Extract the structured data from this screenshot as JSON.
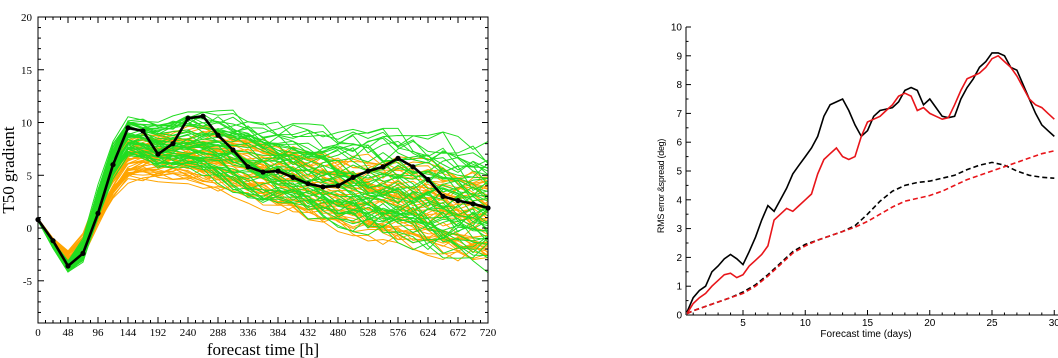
{
  "chart_data": [
    {
      "type": "line",
      "title": "",
      "xlabel": "forecast time [h]",
      "ylabel": "T50 gradient",
      "xlim": [
        0,
        720
      ],
      "ylim": [
        -9,
        20
      ],
      "x_ticks": [
        "0",
        "48",
        "96",
        "144",
        "192",
        "240",
        "288",
        "336",
        "384",
        "432",
        "480",
        "528",
        "576",
        "624",
        "672",
        "720"
      ],
      "y_ticks": [
        "-5",
        "0",
        "5",
        "10",
        "15",
        "20"
      ],
      "x_tick_values": [
        0,
        48,
        96,
        144,
        192,
        240,
        288,
        336,
        384,
        432,
        480,
        528,
        576,
        624,
        672,
        720
      ],
      "y_tick_values": [
        -5,
        0,
        5,
        10,
        15,
        20
      ],
      "colors": {
        "orange": "#ffa500",
        "green": "#22dd22",
        "black": "#000000"
      },
      "orange_envelope": {
        "x": [
          0,
          24,
          48,
          72,
          96,
          120,
          144,
          168,
          192,
          216,
          240,
          264,
          288,
          312,
          336,
          360,
          384,
          408,
          432,
          456,
          480,
          504,
          528,
          552,
          576,
          600,
          624,
          648,
          672,
          696,
          720
        ],
        "center": [
          0.8,
          -1.3,
          -2.9,
          -1.8,
          1.7,
          4.5,
          6.4,
          6.8,
          6.9,
          7.0,
          7.1,
          6.9,
          6.7,
          6.3,
          5.9,
          5.5,
          5.1,
          4.7,
          4.3,
          3.9,
          3.5,
          3.2,
          2.9,
          2.6,
          2.4,
          2.2,
          2.0,
          1.8,
          1.6,
          1.4,
          1.2
        ],
        "spread": [
          0.1,
          0.3,
          0.6,
          0.9,
          1.1,
          1.3,
          1.5,
          1.7,
          1.8,
          1.9,
          2.0,
          2.1,
          2.2,
          2.3,
          2.4,
          2.5,
          2.6,
          2.6,
          2.7,
          2.8,
          2.8,
          2.9,
          3.0,
          3.0,
          3.1,
          3.1,
          3.2,
          3.3,
          3.3,
          3.4,
          3.4
        ],
        "members": 50
      },
      "green_envelope": {
        "x": [
          0,
          24,
          48,
          72,
          96,
          120,
          144,
          168,
          192,
          216,
          240,
          264,
          288,
          312,
          336,
          360,
          384,
          408,
          432,
          456,
          480,
          504,
          528,
          552,
          576,
          600,
          624,
          648,
          672,
          696,
          720
        ],
        "center": [
          0.8,
          -1.6,
          -3.6,
          -2.1,
          2.4,
          6.3,
          8.6,
          8.4,
          7.9,
          8.0,
          8.1,
          8.0,
          7.6,
          7.1,
          6.7,
          6.3,
          5.9,
          5.6,
          5.2,
          4.9,
          4.6,
          4.4,
          4.2,
          4.0,
          3.8,
          3.6,
          3.3,
          3.0,
          2.7,
          2.4,
          2.1
        ],
        "spread": [
          0.1,
          0.3,
          0.5,
          0.9,
          1.2,
          1.4,
          1.5,
          1.6,
          1.8,
          2.0,
          2.2,
          2.4,
          2.6,
          2.8,
          3.0,
          3.1,
          3.2,
          3.3,
          3.4,
          3.5,
          3.6,
          3.7,
          3.8,
          3.9,
          4.0,
          4.1,
          4.2,
          4.3,
          4.3,
          4.4,
          4.4
        ],
        "members": 50
      },
      "series": [
        {
          "x": [
            0,
            24,
            48,
            72,
            96,
            120,
            144,
            168,
            192,
            216,
            240,
            264,
            288,
            312,
            336,
            360,
            384,
            408,
            432,
            456,
            480,
            504,
            528,
            552,
            576,
            600,
            624,
            648,
            672,
            696,
            720
          ],
          "values": [
            0.8,
            -1.2,
            -3.6,
            -2.4,
            1.4,
            6.0,
            9.5,
            9.2,
            7.0,
            8.0,
            10.4,
            10.6,
            8.8,
            7.4,
            5.8,
            5.3,
            5.4,
            4.8,
            4.2,
            3.9,
            4.0,
            4.8,
            5.4,
            5.8,
            6.6,
            5.8,
            4.6,
            3.0,
            2.6,
            2.3,
            1.9
          ]
        }
      ]
    },
    {
      "type": "line",
      "title": "",
      "xlabel": "Forecast time (days)",
      "ylabel": "RMS error &spread (deg)",
      "xlim": [
        0.5,
        30
      ],
      "ylim": [
        0,
        10
      ],
      "x_ticks": [
        "5",
        "10",
        "15",
        "20",
        "25",
        "30"
      ],
      "y_ticks": [
        "0",
        "1",
        "2",
        "3",
        "4",
        "5",
        "6",
        "7",
        "8",
        "9",
        "10"
      ],
      "x_tick_values": [
        5,
        10,
        15,
        20,
        25,
        30
      ],
      "y_tick_values": [
        0,
        1,
        2,
        3,
        4,
        5,
        6,
        7,
        8,
        9,
        10
      ],
      "series": [
        {
          "color": "#000000",
          "dash": false,
          "x": [
            0.5,
            1,
            1.5,
            2,
            2.5,
            3,
            3.5,
            4,
            4.5,
            5,
            5.5,
            6,
            6.5,
            7,
            7.5,
            8,
            8.5,
            9,
            9.5,
            10,
            10.5,
            11,
            11.5,
            12,
            12.5,
            13,
            13.5,
            14,
            14.5,
            15,
            15.5,
            16,
            16.5,
            17,
            17.5,
            18,
            18.5,
            19,
            19.5,
            20,
            20.5,
            21,
            21.5,
            22,
            22.5,
            23,
            23.5,
            24,
            24.5,
            25,
            25.5,
            26,
            26.5,
            27,
            27.5,
            28,
            28.5,
            29,
            29.5,
            30
          ],
          "values": [
            0.1,
            0.6,
            0.85,
            1.0,
            1.5,
            1.7,
            1.95,
            2.1,
            1.95,
            1.75,
            2.2,
            2.7,
            3.3,
            3.8,
            3.6,
            4.0,
            4.4,
            4.9,
            5.2,
            5.5,
            5.8,
            6.2,
            6.9,
            7.3,
            7.4,
            7.5,
            7.1,
            6.6,
            6.2,
            6.4,
            6.9,
            7.1,
            7.15,
            7.2,
            7.4,
            7.8,
            7.9,
            7.8,
            7.3,
            7.5,
            7.2,
            6.9,
            6.85,
            6.9,
            7.5,
            7.9,
            8.2,
            8.6,
            8.8,
            9.1,
            9.1,
            9.0,
            8.6,
            8.5,
            8.0,
            7.5,
            7.0,
            6.6,
            6.4,
            6.2
          ]
        },
        {
          "color": "#e8151a",
          "dash": false,
          "x": [
            0.5,
            1,
            1.5,
            2,
            2.5,
            3,
            3.5,
            4,
            4.5,
            5,
            5.5,
            6,
            6.5,
            7,
            7.5,
            8,
            8.5,
            9,
            9.5,
            10,
            10.5,
            11,
            11.5,
            12,
            12.5,
            13,
            13.5,
            14,
            14.5,
            15,
            15.5,
            16,
            16.5,
            17,
            17.5,
            18,
            18.5,
            19,
            19.5,
            20,
            20.5,
            21,
            21.5,
            22,
            22.5,
            23,
            23.5,
            24,
            24.5,
            25,
            25.5,
            26,
            26.5,
            27,
            27.5,
            28,
            28.5,
            29,
            29.5,
            30
          ],
          "values": [
            0.05,
            0.4,
            0.6,
            0.75,
            1.0,
            1.2,
            1.4,
            1.45,
            1.3,
            1.4,
            1.7,
            1.9,
            2.1,
            2.4,
            3.3,
            3.5,
            3.7,
            3.6,
            3.8,
            4.0,
            4.2,
            4.9,
            5.4,
            5.6,
            5.8,
            5.5,
            5.4,
            5.5,
            6.2,
            6.7,
            6.8,
            6.9,
            7.1,
            7.3,
            7.6,
            7.7,
            7.6,
            7.1,
            7.2,
            7.0,
            6.9,
            6.8,
            6.85,
            7.3,
            7.8,
            8.2,
            8.3,
            8.4,
            8.6,
            8.9,
            9.0,
            8.8,
            8.6,
            8.3,
            7.9,
            7.5,
            7.3,
            7.2,
            7.0,
            6.8
          ]
        },
        {
          "color": "#000000",
          "dash": true,
          "x": [
            0.5,
            1,
            2,
            3,
            4,
            5,
            6,
            7,
            8,
            9,
            10,
            11,
            12,
            13,
            14,
            15,
            16,
            17,
            18,
            19,
            20,
            21,
            22,
            23,
            24,
            25,
            26,
            27,
            28,
            29,
            30
          ],
          "values": [
            0.05,
            0.15,
            0.3,
            0.45,
            0.6,
            0.8,
            1.05,
            1.4,
            1.8,
            2.2,
            2.45,
            2.6,
            2.75,
            2.9,
            3.1,
            3.5,
            3.95,
            4.3,
            4.5,
            4.6,
            4.65,
            4.75,
            4.85,
            5.05,
            5.2,
            5.3,
            5.2,
            5.0,
            4.85,
            4.78,
            4.75
          ]
        },
        {
          "color": "#e8151a",
          "dash": true,
          "x": [
            0.5,
            1,
            2,
            3,
            4,
            5,
            6,
            7,
            8,
            9,
            10,
            11,
            12,
            13,
            14,
            15,
            16,
            17,
            18,
            19,
            20,
            21,
            22,
            23,
            24,
            25,
            26,
            27,
            28,
            29,
            30
          ],
          "values": [
            0.05,
            0.15,
            0.3,
            0.45,
            0.6,
            0.75,
            1.0,
            1.35,
            1.75,
            2.15,
            2.4,
            2.6,
            2.75,
            2.9,
            3.05,
            3.25,
            3.5,
            3.75,
            3.95,
            4.05,
            4.15,
            4.3,
            4.5,
            4.7,
            4.85,
            5.0,
            5.15,
            5.3,
            5.45,
            5.6,
            5.7
          ]
        }
      ]
    }
  ]
}
